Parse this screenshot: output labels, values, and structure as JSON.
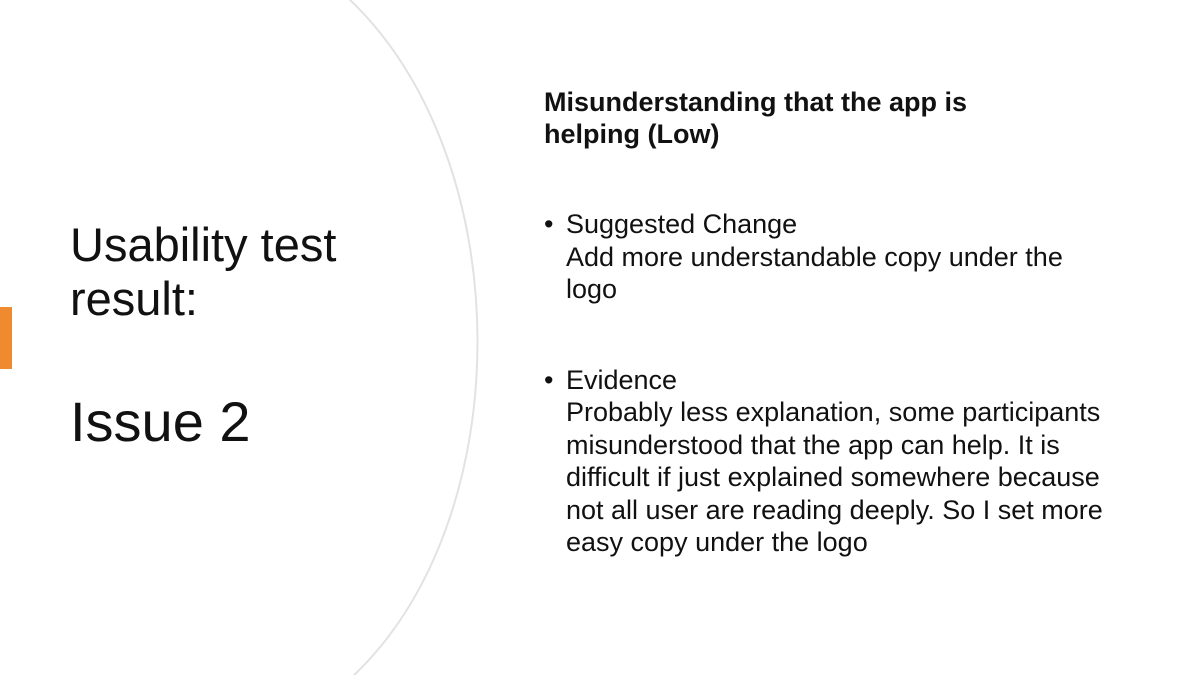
{
  "colors": {
    "accent": "#F08A2E",
    "arc": "#e2e2e2",
    "text": "#111111",
    "background": "#ffffff"
  },
  "left": {
    "title": "Usability test result:",
    "issue": "Issue 2"
  },
  "right": {
    "heading": "Misunderstanding that the app is helping (Low)",
    "bullet_symbol": "•",
    "bullets": [
      {
        "label": "Suggested Change",
        "text": "Add more understandable copy under the logo"
      },
      {
        "label": "Evidence",
        "text": "Probably less explanation, some participants misunderstood that the app can help. It is difficult if just explained somewhere because not all user are reading deeply. So I set more easy copy under the logo"
      }
    ]
  }
}
